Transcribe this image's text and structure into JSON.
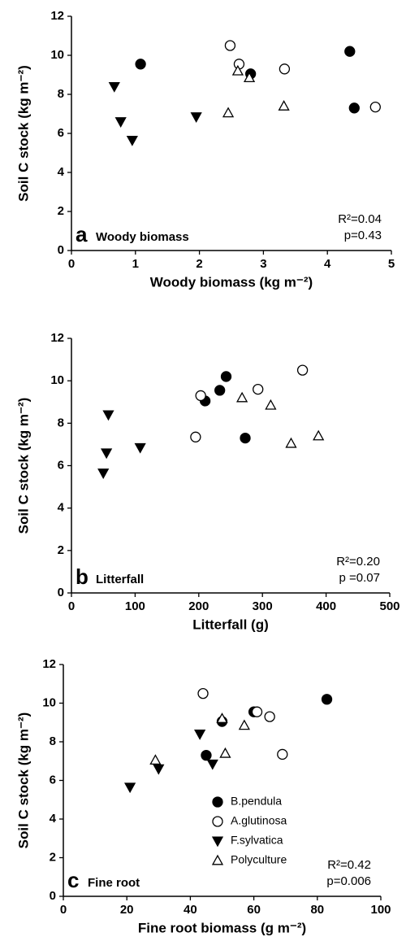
{
  "chart_data": [
    {
      "type": "scatter",
      "panel_label": "a",
      "annotation": "Woody biomass",
      "stats": [
        "R²=0.04",
        "p=0.43"
      ],
      "x_label": "Woody biomass (kg m⁻²)",
      "y_label": "Soil C stock (kg m⁻²)",
      "xlim": [
        0,
        5
      ],
      "xticks": [
        0,
        1,
        2,
        3,
        4,
        5
      ],
      "ylim": [
        0,
        12
      ],
      "yticks": [
        0,
        2,
        4,
        6,
        8,
        10,
        12
      ],
      "series": [
        {
          "name": "B.pendula",
          "color": "#000000",
          "marker": "circle",
          "filled": true,
          "x": [
            1.08,
            2.8,
            4.35,
            4.42
          ],
          "values": [
            9.55,
            9.05,
            10.2,
            7.3
          ]
        },
        {
          "name": "A.glutinosa",
          "color": "#000000",
          "marker": "circle",
          "filled": false,
          "x": [
            2.48,
            2.62,
            3.33,
            4.75
          ],
          "values": [
            10.5,
            9.55,
            9.3,
            7.35
          ]
        },
        {
          "name": "F.sylvatica",
          "color": "#000000",
          "marker": "triangle-down",
          "filled": true,
          "x": [
            0.67,
            0.77,
            0.95,
            1.95
          ],
          "values": [
            8.4,
            6.6,
            5.65,
            6.85
          ]
        },
        {
          "name": "Polyculture",
          "color": "#000000",
          "marker": "triangle-up",
          "filled": false,
          "x": [
            2.6,
            2.78,
            2.45,
            3.32
          ],
          "values": [
            9.2,
            8.85,
            7.05,
            7.4
          ]
        }
      ],
      "legend": false
    },
    {
      "type": "scatter",
      "panel_label": "b",
      "annotation": "Litterfall",
      "stats": [
        "R²=0.20",
        "p =0.07"
      ],
      "x_label": "Litterfall (g)",
      "y_label": "Soil C stock (kg m⁻²)",
      "xlim": [
        0,
        500
      ],
      "xticks": [
        0,
        100,
        200,
        300,
        400,
        500
      ],
      "ylim": [
        0,
        12
      ],
      "yticks": [
        0,
        2,
        4,
        6,
        8,
        10,
        12
      ],
      "series": [
        {
          "name": "B.pendula",
          "color": "#000000",
          "marker": "circle",
          "filled": true,
          "x": [
            210,
            233,
            243,
            273
          ],
          "values": [
            9.05,
            9.55,
            10.2,
            7.3
          ]
        },
        {
          "name": "A.glutinosa",
          "color": "#000000",
          "marker": "circle",
          "filled": false,
          "x": [
            203,
            195,
            293,
            363
          ],
          "values": [
            9.3,
            7.35,
            9.6,
            10.5
          ]
        },
        {
          "name": "F.sylvatica",
          "color": "#000000",
          "marker": "triangle-down",
          "filled": true,
          "x": [
            58,
            55,
            50,
            108
          ],
          "values": [
            8.4,
            6.6,
            5.65,
            6.85
          ]
        },
        {
          "name": "Polyculture",
          "color": "#000000",
          "marker": "triangle-up",
          "filled": false,
          "x": [
            268,
            313,
            345,
            388
          ],
          "values": [
            9.2,
            8.85,
            7.05,
            7.4
          ]
        }
      ],
      "legend": false
    },
    {
      "type": "scatter",
      "panel_label": "c",
      "annotation": "Fine root",
      "stats": [
        "R²=0.42",
        "p=0.006"
      ],
      "x_label": "Fine root biomass (g m⁻²)",
      "y_label": "Soil C stock (kg m⁻²)",
      "xlim": [
        0,
        100
      ],
      "xticks": [
        0,
        20,
        40,
        60,
        80,
        100
      ],
      "ylim": [
        0,
        12
      ],
      "yticks": [
        0,
        2,
        4,
        6,
        8,
        10,
        12
      ],
      "series": [
        {
          "name": "B.pendula",
          "color": "#000000",
          "marker": "circle",
          "filled": true,
          "x": [
            45,
            50,
            60,
            83
          ],
          "values": [
            7.3,
            9.05,
            9.55,
            10.2
          ]
        },
        {
          "name": "A.glutinosa",
          "color": "#000000",
          "marker": "circle",
          "filled": false,
          "x": [
            44,
            61,
            65,
            69
          ],
          "values": [
            10.5,
            9.55,
            9.3,
            7.35
          ]
        },
        {
          "name": "F.sylvatica",
          "color": "#000000",
          "marker": "triangle-down",
          "filled": true,
          "x": [
            21,
            30,
            43,
            47
          ],
          "values": [
            5.65,
            6.6,
            8.4,
            6.85
          ]
        },
        {
          "name": "Polyculture",
          "color": "#000000",
          "marker": "triangle-up",
          "filled": false,
          "x": [
            29,
            50,
            51,
            57
          ],
          "values": [
            7.05,
            9.2,
            7.4,
            8.85
          ]
        }
      ],
      "legend": true
    }
  ]
}
